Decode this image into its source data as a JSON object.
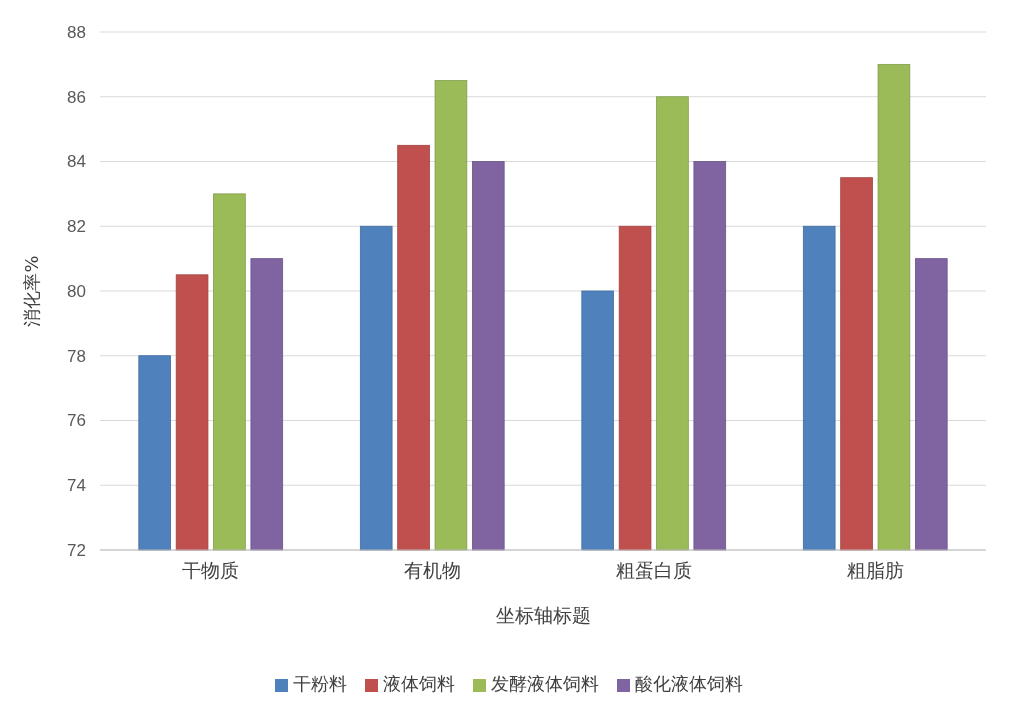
{
  "chart_data": {
    "type": "bar",
    "xlabel": "坐标轴标题",
    "ylabel": "消化率%",
    "categories": [
      "干物质",
      "有机物",
      "粗蛋白质",
      "粗脂肪"
    ],
    "series": [
      {
        "name": "干粉料",
        "color": "#4f81bd",
        "values": [
          78,
          82,
          80,
          82
        ]
      },
      {
        "name": "液体饲料",
        "color": "#c0504d",
        "values": [
          80.5,
          84.5,
          82,
          83.5
        ]
      },
      {
        "name": "发酵液体饲料",
        "color": "#9bbb59",
        "values": [
          83,
          86.5,
          86,
          87
        ]
      },
      {
        "name": "酸化液体饲料",
        "color": "#8064a2",
        "values": [
          81,
          84,
          84,
          81
        ]
      }
    ],
    "ylim": [
      72,
      88
    ],
    "yticks": [
      72,
      74,
      76,
      78,
      80,
      82,
      84,
      86,
      88
    ],
    "grid": "y",
    "legend": "bottom"
  }
}
